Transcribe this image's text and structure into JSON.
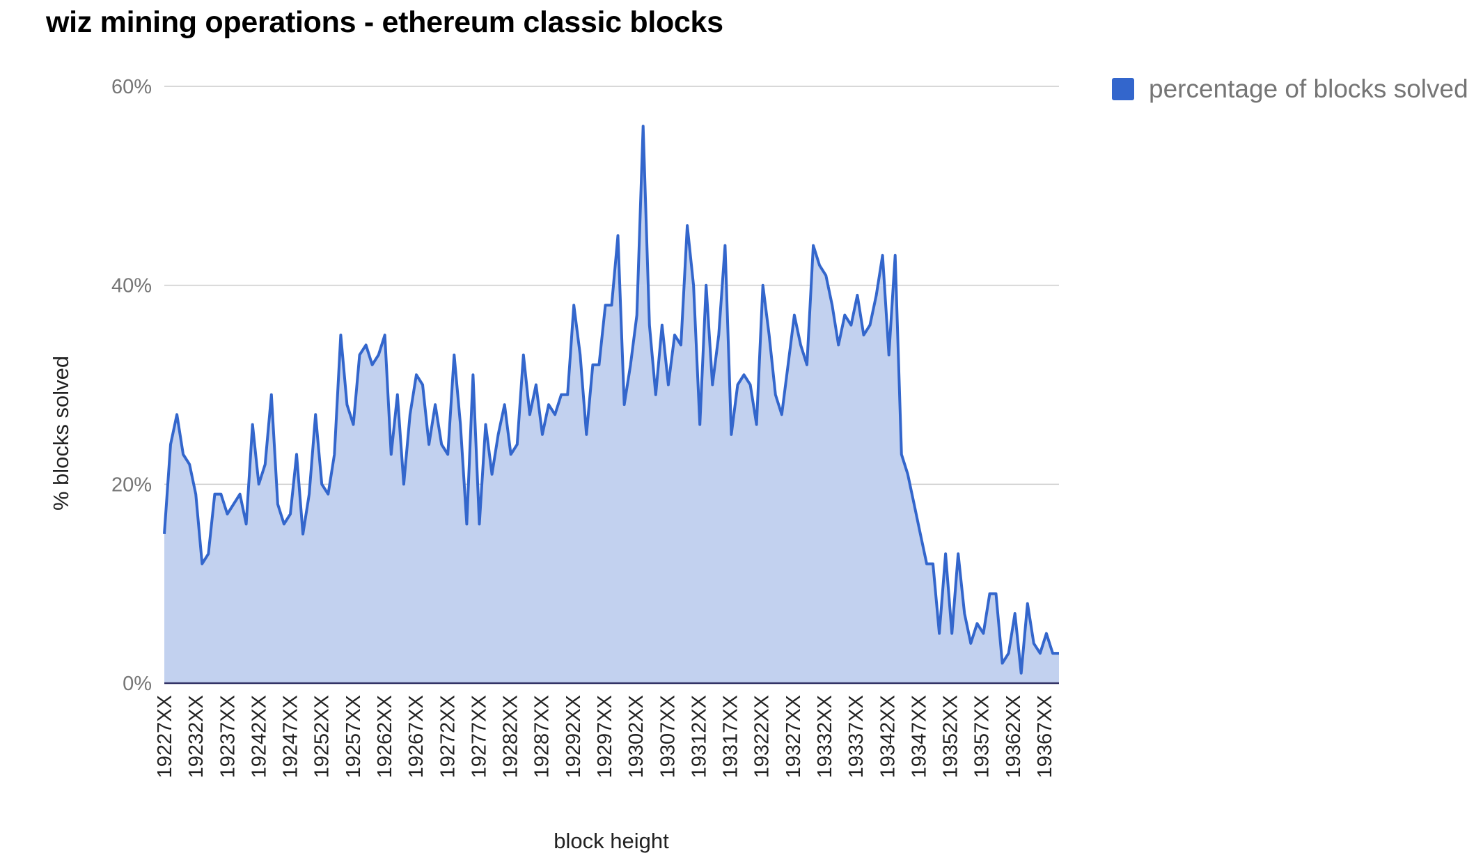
{
  "chart_data": {
    "type": "area",
    "title": "wiz mining operations - ethereum classic blocks",
    "xlabel": "block height",
    "ylabel": "% blocks solved",
    "ylim": [
      0,
      60
    ],
    "y_ticks": [
      "0%",
      "20%",
      "40%",
      "60%"
    ],
    "x_ticks": [
      "19227XX",
      "19232XX",
      "19237XX",
      "19242XX",
      "19247XX",
      "19252XX",
      "19257XX",
      "19262XX",
      "19267XX",
      "19272XX",
      "19277XX",
      "19282XX",
      "19287XX",
      "19292XX",
      "19297XX",
      "19302XX",
      "19307XX",
      "19312XX",
      "19317XX",
      "19322XX",
      "19327XX",
      "19332XX",
      "19337XX",
      "19342XX",
      "19347XX",
      "19352XX",
      "19357XX",
      "19362XX",
      "19367XX"
    ],
    "grid": true,
    "legend_position": "right",
    "color": "#3366cc",
    "fill_color": "#c2d1ef",
    "series": [
      {
        "name": "percentage of blocks solved",
        "values": [
          15,
          24,
          27,
          23,
          22,
          19,
          12,
          13,
          19,
          19,
          17,
          18,
          19,
          16,
          26,
          20,
          22,
          29,
          18,
          16,
          17,
          23,
          15,
          19,
          27,
          20,
          19,
          23,
          35,
          28,
          26,
          33,
          34,
          32,
          33,
          35,
          23,
          29,
          20,
          27,
          31,
          30,
          24,
          28,
          24,
          23,
          33,
          26,
          16,
          31,
          16,
          26,
          21,
          25,
          28,
          23,
          24,
          33,
          27,
          30,
          25,
          28,
          27,
          29,
          29,
          38,
          33,
          25,
          32,
          32,
          38,
          38,
          45,
          28,
          32,
          37,
          56,
          36,
          29,
          36,
          30,
          35,
          34,
          46,
          40,
          26,
          40,
          30,
          35,
          44,
          25,
          30,
          31,
          30,
          26,
          40,
          35,
          29,
          27,
          32,
          37,
          34,
          32,
          44,
          42,
          41,
          38,
          34,
          37,
          36,
          39,
          35,
          36,
          39,
          43,
          33,
          43,
          23,
          21,
          18,
          15,
          12,
          12,
          5,
          13,
          5,
          13,
          7,
          4,
          6,
          5,
          9,
          9,
          2,
          3,
          7,
          1,
          8,
          4,
          3,
          5,
          3,
          3
        ]
      }
    ]
  }
}
